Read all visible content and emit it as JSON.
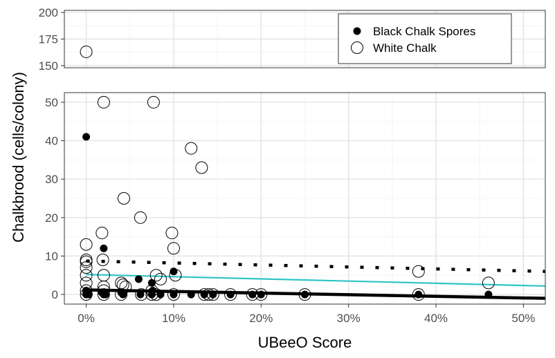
{
  "chart_data": {
    "type": "scatter",
    "xlabel": "UBeeO Score",
    "ylabel": "Chalkbrood (cells/colony)",
    "x_unit": "percent",
    "xlim": [
      -2.5,
      52.5
    ],
    "x_ticks": [
      0,
      10,
      20,
      30,
      40,
      50
    ],
    "x_tick_labels": [
      "0%",
      "10%",
      "20%",
      "30%",
      "40%",
      "50%"
    ],
    "y_axis_break": true,
    "upper_panel": {
      "ylim": [
        148,
        202
      ],
      "ticks": [
        150,
        175,
        200
      ],
      "tick_labels": [
        "150",
        "175",
        "200"
      ]
    },
    "lower_panel": {
      "ylim": [
        -2.5,
        52.5
      ],
      "ticks": [
        0,
        10,
        20,
        30,
        40,
        50
      ],
      "tick_labels": [
        "0",
        "10",
        "20",
        "30",
        "40",
        "50"
      ]
    },
    "grid": true,
    "legend": {
      "placement": "top-right",
      "entries": [
        {
          "label": "Black Chalk Spores",
          "marker": "filled-circle"
        },
        {
          "label": "White Chalk",
          "marker": "open-circle"
        }
      ]
    },
    "series": [
      {
        "name": "Black Chalk Spores",
        "marker": "filled",
        "color": "#000000",
        "points": [
          [
            0,
            41
          ],
          [
            0,
            1
          ],
          [
            0,
            0.5
          ],
          [
            0,
            0
          ],
          [
            0.2,
            0.3
          ],
          [
            0.3,
            0
          ],
          [
            2,
            12
          ],
          [
            1.8,
            0.5
          ],
          [
            2,
            0
          ],
          [
            2.2,
            0
          ],
          [
            4,
            0.5
          ],
          [
            4.2,
            0
          ],
          [
            6,
            4
          ],
          [
            6.2,
            0
          ],
          [
            7.5,
            3
          ],
          [
            7.6,
            1
          ],
          [
            7.5,
            0
          ],
          [
            8.5,
            0
          ],
          [
            10,
            6
          ],
          [
            10,
            0
          ],
          [
            12,
            0
          ],
          [
            13.5,
            0
          ],
          [
            14.5,
            0
          ],
          [
            16.5,
            0
          ],
          [
            19,
            0
          ],
          [
            20,
            0
          ],
          [
            25,
            0
          ],
          [
            38,
            0
          ],
          [
            46,
            0
          ]
        ]
      },
      {
        "name": "White Chalk",
        "marker": "open",
        "color": "#000000",
        "points": [
          [
            0,
            163
          ],
          [
            0,
            13
          ],
          [
            0,
            9
          ],
          [
            0,
            8.5
          ],
          [
            0,
            7
          ],
          [
            0,
            5
          ],
          [
            0,
            3
          ],
          [
            0,
            1
          ],
          [
            0,
            0
          ],
          [
            2,
            50
          ],
          [
            1.8,
            16
          ],
          [
            1.9,
            9
          ],
          [
            2,
            5
          ],
          [
            2,
            2
          ],
          [
            2,
            1
          ],
          [
            2,
            0
          ],
          [
            4.3,
            25
          ],
          [
            4,
            3
          ],
          [
            4.2,
            2.5
          ],
          [
            4.5,
            2
          ],
          [
            4,
            0
          ],
          [
            6.2,
            20
          ],
          [
            6.3,
            0
          ],
          [
            7.7,
            50
          ],
          [
            7.5,
            1
          ],
          [
            7.5,
            0
          ],
          [
            8,
            5
          ],
          [
            8.5,
            4
          ],
          [
            8,
            0
          ],
          [
            9.8,
            16
          ],
          [
            10,
            12
          ],
          [
            10.2,
            5
          ],
          [
            10,
            0
          ],
          [
            12,
            38
          ],
          [
            13.2,
            33
          ],
          [
            13.5,
            0
          ],
          [
            14,
            0
          ],
          [
            14.5,
            0
          ],
          [
            16.5,
            0
          ],
          [
            19,
            0
          ],
          [
            20,
            0
          ],
          [
            25,
            0
          ],
          [
            38,
            6
          ],
          [
            38,
            0
          ],
          [
            46,
            3
          ]
        ]
      }
    ],
    "trend_lines": [
      {
        "style": "solid-thick",
        "color": "#000000",
        "from": [
          0,
          1.2
        ],
        "to": [
          52.5,
          -1
        ]
      },
      {
        "style": "solid",
        "color": "#2ec4c6",
        "from": [
          0,
          5.2
        ],
        "to": [
          52.5,
          2.2
        ]
      },
      {
        "style": "dotted",
        "color": "#000000",
        "from": [
          0,
          8.7
        ],
        "to": [
          52.5,
          6
        ]
      }
    ]
  }
}
